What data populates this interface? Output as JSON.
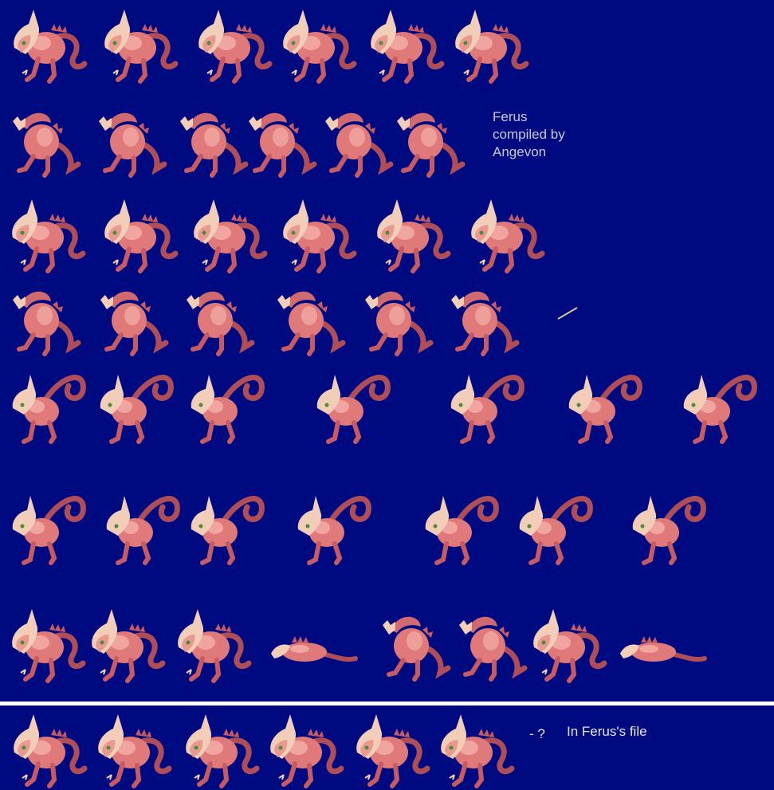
{
  "credit": {
    "line1": "Ferus",
    "line2": "compiled by",
    "line3": "Angevon"
  },
  "bottom_section": {
    "unknown_marker": "- ?",
    "file_note": "In Ferus's file"
  },
  "colors": {
    "background": "#000a80",
    "divider": "#ffffff",
    "sprite_body": "#e07a7a",
    "sprite_shade": "#b04e58",
    "sprite_highlight": "#f6b8b0",
    "sprite_crest": "#f2cdb8"
  },
  "sprite_rows": [
    {
      "pose": "stand-front",
      "count": 6
    },
    {
      "pose": "stand-back",
      "count": 6
    },
    {
      "pose": "walk-front",
      "count": 6
    },
    {
      "pose": "walk-back",
      "count": 6
    },
    {
      "pose": "attack-front",
      "count": 7
    },
    {
      "pose": "attack-back",
      "count": 7
    },
    {
      "pose": "hurt-die",
      "count": 8
    },
    {
      "pose": "unknown",
      "count": 6
    }
  ]
}
